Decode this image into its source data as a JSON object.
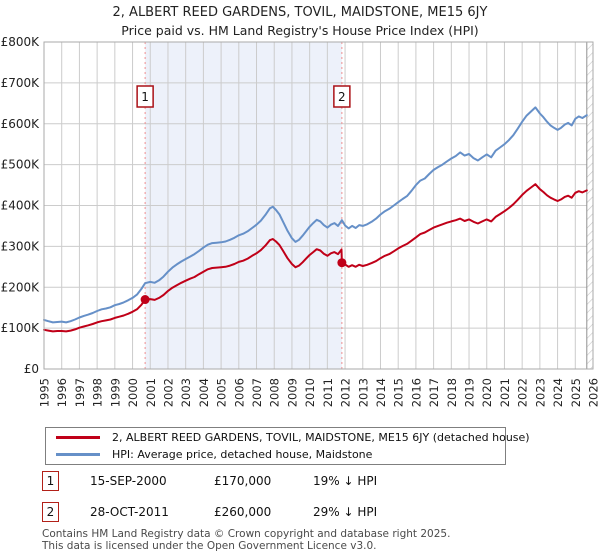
{
  "title": "2, ALBERT REED GARDENS, TOVIL, MAIDSTONE, ME15 6JY",
  "subtitle": "Price paid vs. HM Land Registry's House Price Index (HPI)",
  "chart_data": {
    "type": "line",
    "x_range": [
      1995,
      2026
    ],
    "ylim": [
      0,
      800
    ],
    "y_unit": "GBP thousands",
    "grid": true,
    "x_ticks": [
      "1995",
      "1996",
      "1997",
      "1998",
      "1999",
      "2000",
      "2001",
      "2002",
      "2003",
      "2004",
      "2005",
      "2006",
      "2007",
      "2008",
      "2009",
      "2010",
      "2011",
      "2012",
      "2013",
      "2014",
      "2015",
      "2016",
      "2017",
      "2018",
      "2019",
      "2020",
      "2021",
      "2022",
      "2023",
      "2024",
      "2025",
      "2026"
    ],
    "y_ticks": [
      [
        800,
        "£800K"
      ],
      [
        700,
        "£700K"
      ],
      [
        600,
        "£600K"
      ],
      [
        500,
        "£500K"
      ],
      [
        400,
        "£400K"
      ],
      [
        300,
        "£300K"
      ],
      [
        200,
        "£200K"
      ],
      [
        100,
        "£100K"
      ],
      [
        0,
        "£0"
      ]
    ],
    "colors": {
      "grid": "#cccccc",
      "frame": "#aaaaaa",
      "shade": "#edf1fa",
      "dashed": "#f09090",
      "hatch": "#c4c4c4",
      "hatch_edge": "#909090",
      "marker_border": "#aa1016"
    },
    "shaded_region": [
      2000.71,
      2011.82
    ],
    "future_region": [
      2025.65,
      2026
    ],
    "series": [
      {
        "name": "2, ALBERT REED GARDENS, TOVIL, MAIDSTONE, ME15 6JY (detached house)",
        "color": "#c00018",
        "points": [
          [
            1995,
            96
          ],
          [
            1995.25,
            94
          ],
          [
            1995.5,
            92
          ],
          [
            1995.75,
            93
          ],
          [
            1996,
            93
          ],
          [
            1996.25,
            92
          ],
          [
            1996.5,
            94
          ],
          [
            1996.75,
            97
          ],
          [
            1997,
            101
          ],
          [
            1997.25,
            104
          ],
          [
            1997.5,
            107
          ],
          [
            1997.75,
            110
          ],
          [
            1998,
            114
          ],
          [
            1998.25,
            117
          ],
          [
            1998.5,
            119
          ],
          [
            1998.75,
            121
          ],
          [
            1999,
            125
          ],
          [
            1999.25,
            128
          ],
          [
            1999.5,
            131
          ],
          [
            1999.75,
            135
          ],
          [
            2000,
            140
          ],
          [
            2000.25,
            146
          ],
          [
            2000.5,
            157
          ],
          [
            2000.71,
            170
          ],
          [
            2001,
            171
          ],
          [
            2001.25,
            169
          ],
          [
            2001.5,
            174
          ],
          [
            2001.75,
            181
          ],
          [
            2002,
            191
          ],
          [
            2002.25,
            199
          ],
          [
            2002.5,
            205
          ],
          [
            2002.75,
            211
          ],
          [
            2003,
            216
          ],
          [
            2003.25,
            221
          ],
          [
            2003.5,
            225
          ],
          [
            2003.75,
            232
          ],
          [
            2004,
            238
          ],
          [
            2004.25,
            244
          ],
          [
            2004.5,
            247
          ],
          [
            2004.75,
            248
          ],
          [
            2005,
            249
          ],
          [
            2005.25,
            250
          ],
          [
            2005.5,
            253
          ],
          [
            2005.75,
            257
          ],
          [
            2006,
            262
          ],
          [
            2006.25,
            265
          ],
          [
            2006.5,
            270
          ],
          [
            2006.75,
            277
          ],
          [
            2007,
            283
          ],
          [
            2007.25,
            291
          ],
          [
            2007.5,
            302
          ],
          [
            2007.75,
            315
          ],
          [
            2007.92,
            318
          ],
          [
            2008.1,
            312
          ],
          [
            2008.3,
            303
          ],
          [
            2008.5,
            289
          ],
          [
            2008.75,
            271
          ],
          [
            2009,
            257
          ],
          [
            2009.2,
            249
          ],
          [
            2009.4,
            253
          ],
          [
            2009.6,
            261
          ],
          [
            2009.8,
            270
          ],
          [
            2010,
            279
          ],
          [
            2010.2,
            286
          ],
          [
            2010.4,
            293
          ],
          [
            2010.6,
            290
          ],
          [
            2010.8,
            282
          ],
          [
            2011,
            277
          ],
          [
            2011.2,
            283
          ],
          [
            2011.4,
            286
          ],
          [
            2011.6,
            281
          ],
          [
            2011.8,
            292
          ],
          [
            2011.82,
            260
          ],
          [
            2012,
            256
          ],
          [
            2012.2,
            250
          ],
          [
            2012.4,
            254
          ],
          [
            2012.6,
            250
          ],
          [
            2012.8,
            255
          ],
          [
            2013,
            252
          ],
          [
            2013.25,
            255
          ],
          [
            2013.5,
            259
          ],
          [
            2013.75,
            264
          ],
          [
            2014,
            271
          ],
          [
            2014.25,
            277
          ],
          [
            2014.5,
            281
          ],
          [
            2014.75,
            288
          ],
          [
            2015,
            295
          ],
          [
            2015.25,
            301
          ],
          [
            2015.5,
            306
          ],
          [
            2015.75,
            314
          ],
          [
            2016,
            322
          ],
          [
            2016.25,
            330
          ],
          [
            2016.5,
            334
          ],
          [
            2016.75,
            340
          ],
          [
            2017,
            346
          ],
          [
            2017.25,
            350
          ],
          [
            2017.5,
            354
          ],
          [
            2017.75,
            358
          ],
          [
            2018,
            361
          ],
          [
            2018.25,
            364
          ],
          [
            2018.5,
            368
          ],
          [
            2018.75,
            362
          ],
          [
            2019,
            366
          ],
          [
            2019.25,
            360
          ],
          [
            2019.5,
            356
          ],
          [
            2019.75,
            361
          ],
          [
            2020,
            366
          ],
          [
            2020.25,
            361
          ],
          [
            2020.5,
            372
          ],
          [
            2020.75,
            379
          ],
          [
            2021,
            386
          ],
          [
            2021.25,
            394
          ],
          [
            2021.5,
            403
          ],
          [
            2021.75,
            414
          ],
          [
            2022,
            426
          ],
          [
            2022.25,
            436
          ],
          [
            2022.5,
            444
          ],
          [
            2022.75,
            452
          ],
          [
            2023,
            440
          ],
          [
            2023.2,
            433
          ],
          [
            2023.4,
            425
          ],
          [
            2023.6,
            419
          ],
          [
            2023.8,
            415
          ],
          [
            2024,
            411
          ],
          [
            2024.2,
            415
          ],
          [
            2024.4,
            421
          ],
          [
            2024.6,
            424
          ],
          [
            2024.8,
            419
          ],
          [
            2025,
            431
          ],
          [
            2025.2,
            435
          ],
          [
            2025.4,
            432
          ],
          [
            2025.65,
            437
          ]
        ]
      },
      {
        "name": "HPI: Average price, detached house, Maidstone",
        "color": "#6690c8",
        "points": [
          [
            1995,
            120
          ],
          [
            1995.25,
            117
          ],
          [
            1995.5,
            114
          ],
          [
            1995.75,
            115
          ],
          [
            1996,
            116
          ],
          [
            1996.25,
            114
          ],
          [
            1996.5,
            117
          ],
          [
            1996.75,
            121
          ],
          [
            1997,
            126
          ],
          [
            1997.25,
            130
          ],
          [
            1997.5,
            133
          ],
          [
            1997.75,
            137
          ],
          [
            1998,
            142
          ],
          [
            1998.25,
            146
          ],
          [
            1998.5,
            148
          ],
          [
            1998.75,
            151
          ],
          [
            1999,
            156
          ],
          [
            1999.25,
            159
          ],
          [
            1999.5,
            163
          ],
          [
            1999.75,
            168
          ],
          [
            2000,
            174
          ],
          [
            2000.25,
            182
          ],
          [
            2000.5,
            196
          ],
          [
            2000.71,
            210
          ],
          [
            2001,
            213
          ],
          [
            2001.25,
            211
          ],
          [
            2001.5,
            217
          ],
          [
            2001.75,
            226
          ],
          [
            2002,
            238
          ],
          [
            2002.25,
            248
          ],
          [
            2002.5,
            256
          ],
          [
            2002.75,
            263
          ],
          [
            2003,
            269
          ],
          [
            2003.25,
            275
          ],
          [
            2003.5,
            281
          ],
          [
            2003.75,
            289
          ],
          [
            2004,
            297
          ],
          [
            2004.25,
            304
          ],
          [
            2004.5,
            308
          ],
          [
            2004.75,
            309
          ],
          [
            2005,
            310
          ],
          [
            2005.25,
            312
          ],
          [
            2005.5,
            316
          ],
          [
            2005.75,
            321
          ],
          [
            2006,
            327
          ],
          [
            2006.25,
            331
          ],
          [
            2006.5,
            337
          ],
          [
            2006.75,
            345
          ],
          [
            2007,
            353
          ],
          [
            2007.25,
            363
          ],
          [
            2007.5,
            377
          ],
          [
            2007.75,
            393
          ],
          [
            2007.92,
            397
          ],
          [
            2008.1,
            389
          ],
          [
            2008.3,
            378
          ],
          [
            2008.5,
            360
          ],
          [
            2008.75,
            338
          ],
          [
            2009,
            320
          ],
          [
            2009.2,
            311
          ],
          [
            2009.4,
            316
          ],
          [
            2009.6,
            326
          ],
          [
            2009.8,
            337
          ],
          [
            2010,
            348
          ],
          [
            2010.2,
            357
          ],
          [
            2010.4,
            365
          ],
          [
            2010.6,
            361
          ],
          [
            2010.8,
            352
          ],
          [
            2011,
            346
          ],
          [
            2011.2,
            353
          ],
          [
            2011.4,
            357
          ],
          [
            2011.6,
            350
          ],
          [
            2011.82,
            364
          ],
          [
            2012,
            351
          ],
          [
            2012.2,
            344
          ],
          [
            2012.4,
            350
          ],
          [
            2012.6,
            345
          ],
          [
            2012.8,
            352
          ],
          [
            2013,
            350
          ],
          [
            2013.25,
            354
          ],
          [
            2013.5,
            360
          ],
          [
            2013.75,
            368
          ],
          [
            2014,
            378
          ],
          [
            2014.25,
            386
          ],
          [
            2014.5,
            392
          ],
          [
            2014.75,
            400
          ],
          [
            2015,
            408
          ],
          [
            2015.25,
            416
          ],
          [
            2015.5,
            423
          ],
          [
            2015.75,
            436
          ],
          [
            2016,
            450
          ],
          [
            2016.25,
            461
          ],
          [
            2016.5,
            466
          ],
          [
            2016.75,
            477
          ],
          [
            2017,
            487
          ],
          [
            2017.25,
            494
          ],
          [
            2017.5,
            500
          ],
          [
            2017.75,
            508
          ],
          [
            2018,
            515
          ],
          [
            2018.25,
            521
          ],
          [
            2018.5,
            530
          ],
          [
            2018.75,
            522
          ],
          [
            2019,
            526
          ],
          [
            2019.25,
            516
          ],
          [
            2019.5,
            510
          ],
          [
            2019.75,
            518
          ],
          [
            2020,
            525
          ],
          [
            2020.25,
            518
          ],
          [
            2020.5,
            534
          ],
          [
            2020.75,
            542
          ],
          [
            2021,
            550
          ],
          [
            2021.25,
            560
          ],
          [
            2021.5,
            572
          ],
          [
            2021.75,
            588
          ],
          [
            2022,
            605
          ],
          [
            2022.25,
            620
          ],
          [
            2022.5,
            630
          ],
          [
            2022.75,
            640
          ],
          [
            2023,
            625
          ],
          [
            2023.2,
            616
          ],
          [
            2023.4,
            605
          ],
          [
            2023.6,
            596
          ],
          [
            2023.8,
            590
          ],
          [
            2024,
            585
          ],
          [
            2024.2,
            590
          ],
          [
            2024.4,
            598
          ],
          [
            2024.6,
            602
          ],
          [
            2024.8,
            596
          ],
          [
            2025,
            612
          ],
          [
            2025.2,
            618
          ],
          [
            2025.4,
            614
          ],
          [
            2025.65,
            621
          ]
        ]
      }
    ],
    "sales": [
      {
        "label": "1",
        "year": 2000.71,
        "value": 170
      },
      {
        "label": "2",
        "year": 2011.82,
        "value": 260
      }
    ]
  },
  "legend": {
    "items": [
      {
        "label": "2, ALBERT REED GARDENS, TOVIL, MAIDSTONE, ME15 6JY (detached house)"
      },
      {
        "label": "HPI: Average price, detached house, Maidstone"
      }
    ]
  },
  "annotations": [
    {
      "num": "1",
      "date": "15-SEP-2000",
      "price": "£170,000",
      "delta": "19% ↓ HPI"
    },
    {
      "num": "2",
      "date": "28-OCT-2011",
      "price": "£260,000",
      "delta": "29% ↓ HPI"
    }
  ],
  "footer": {
    "line1": "Contains HM Land Registry data © Crown copyright and database right 2025.",
    "line2": "This data is licensed under the Open Government Licence v3.0."
  }
}
